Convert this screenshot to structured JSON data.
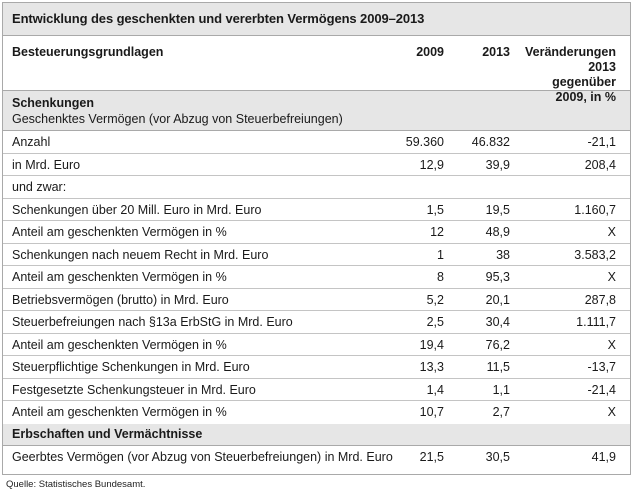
{
  "title": "Entwicklung des geschenkten und vererbten Vermögens 2009–2013",
  "header": {
    "col_label": "Besteuerungsgrundlagen",
    "col_2009": "2009",
    "col_2013": "2013",
    "col_change_line1": "Veränderungen",
    "col_change_line2": "2013 gegenüber",
    "col_change_line3": "2009, in %"
  },
  "section_gifts": {
    "title": "Schenkungen",
    "subtitle": "Geschenktes Vermögen (vor Abzug von Steuerbefreiungen)"
  },
  "rows_gifts": [
    {
      "label": "Anzahl",
      "v2009": "59.360",
      "v2013": "46.832",
      "change": "-21,1"
    },
    {
      "label": "in Mrd. Euro",
      "v2009": "12,9",
      "v2013": "39,9",
      "change": "208,4"
    },
    {
      "label": "und zwar:",
      "v2009": "",
      "v2013": "",
      "change": ""
    },
    {
      "label": "Schenkungen über 20 Mill. Euro in Mrd. Euro",
      "v2009": "1,5",
      "v2013": "19,5",
      "change": "1.160,7"
    },
    {
      "label": "Anteil am geschenkten Vermögen in %",
      "v2009": "12",
      "v2013": "48,9",
      "change": "X"
    },
    {
      "label": "Schenkungen nach neuem Recht in Mrd. Euro",
      "v2009": "1",
      "v2013": "38",
      "change": "3.583,2"
    },
    {
      "label": "Anteil am geschenkten Vermögen in %",
      "v2009": "8",
      "v2013": "95,3",
      "change": "X"
    },
    {
      "label": "Betriebsvermögen (brutto) in Mrd. Euro",
      "v2009": "5,2",
      "v2013": "20,1",
      "change": "287,8"
    },
    {
      "label": "Steuerbefreiungen nach §13a ErbStG in Mrd. Euro",
      "v2009": "2,5",
      "v2013": "30,4",
      "change": "1.111,7"
    },
    {
      "label": "Anteil am geschenkten Vermögen in %",
      "v2009": "19,4",
      "v2013": "76,2",
      "change": "X"
    },
    {
      "label": "Steuerpflichtige Schenkungen in Mrd. Euro",
      "v2009": "13,3",
      "v2013": "11,5",
      "change": "-13,7"
    },
    {
      "label": "Festgesetzte Schenkungsteuer in Mrd. Euro",
      "v2009": "1,4",
      "v2013": "1,1",
      "change": "-21,4"
    },
    {
      "label": "Anteil am geschenkten Vermögen in %",
      "v2009": "10,7",
      "v2013": "2,7",
      "change": "X"
    }
  ],
  "section_inheritance": {
    "title": "Erbschaften und Vermächtnisse"
  },
  "rows_inheritance": [
    {
      "label": "Geerbtes Vermögen (vor Abzug von Steuerbefreiungen) in Mrd. Euro",
      "v2009": "21,5",
      "v2013": "30,5",
      "change": "41,9"
    }
  ],
  "source": "Quelle: Statistisches Bundesamt."
}
